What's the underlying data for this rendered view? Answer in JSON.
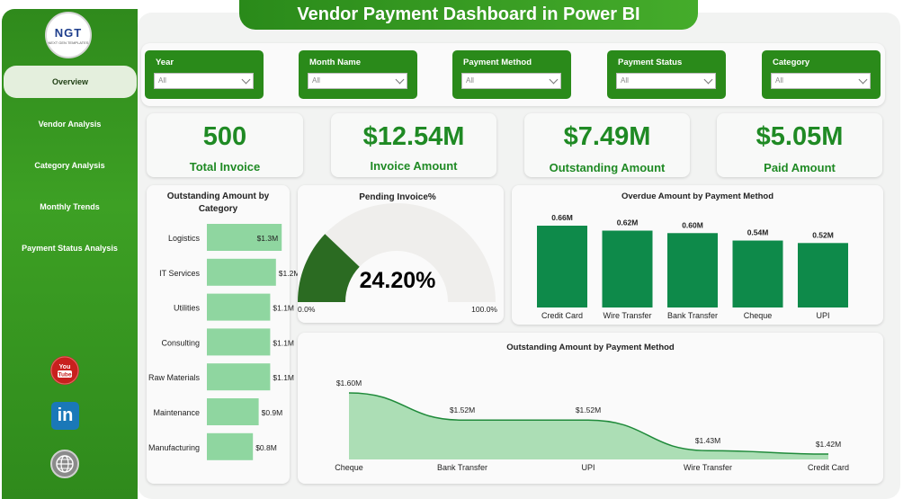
{
  "title": "Vendor Payment Dashboard in Power BI",
  "logo": {
    "text": "NGT",
    "subtext": "NEXT GEN TEMPLATES"
  },
  "nav": [
    "Overview",
    "Vendor Analysis",
    "Category Analysis",
    "Monthly Trends",
    "Payment Status Analysis"
  ],
  "social": {
    "youtube_icon": "youtube-icon",
    "linkedin_icon": "linkedin-icon",
    "website_icon": "globe-icon",
    "youtube_text": "You Tube",
    "linkedin_text": "in"
  },
  "filters": [
    {
      "label": "Year",
      "value": "All"
    },
    {
      "label": "Month Name",
      "value": "All"
    },
    {
      "label": "Payment Method",
      "value": "All"
    },
    {
      "label": "Payment Status",
      "value": "All"
    },
    {
      "label": "Category",
      "value": "All"
    }
  ],
  "kpis": [
    {
      "value": "500",
      "label": "Total Invoice"
    },
    {
      "value": "$12.54M",
      "label": "Invoice Amount"
    },
    {
      "value": "$7.49M",
      "label": "Outstanding Amount"
    },
    {
      "value": "$5.05M",
      "label": "Paid Amount"
    }
  ],
  "colors": {
    "brand": "#2a8a1a",
    "kpi_text": "#1f8a24",
    "bar_dark": "#0e8a4a",
    "bar_light": "#8fd6a0",
    "gauge_fill": "#2b6b22",
    "gauge_track": "#efeeec",
    "area_fill": "#9ed8a8",
    "area_line": "#1f8a3a"
  },
  "chart_data": [
    {
      "type": "bar",
      "orientation": "horizontal",
      "title": "Outstanding Amount by Category",
      "categories": [
        "Logistics",
        "IT Services",
        "Utilities",
        "Consulting",
        "Raw Materials",
        "Maintenance",
        "Manufacturing"
      ],
      "values": [
        1.3,
        1.2,
        1.1,
        1.1,
        1.1,
        0.9,
        0.8
      ],
      "labels": [
        "$1.3M",
        "$1.2M",
        "$1.1M",
        "$1.1M",
        "$1.1M",
        "$0.9M",
        "$0.8M"
      ],
      "xlim": [
        0,
        2.0
      ]
    },
    {
      "type": "gauge",
      "title": "Pending Invoice%",
      "value": 24.2,
      "display": "24.20%",
      "min_label": "0.0%",
      "max_label": "100.0%"
    },
    {
      "type": "bar",
      "title": "Overdue Amount by Payment Method",
      "categories": [
        "Credit Card",
        "Wire Transfer",
        "Bank Transfer",
        "Cheque",
        "UPI"
      ],
      "values": [
        0.66,
        0.62,
        0.6,
        0.54,
        0.52
      ],
      "labels": [
        "0.66M",
        "0.62M",
        "0.60M",
        "0.54M",
        "0.52M"
      ],
      "ylim": [
        0,
        0.66
      ]
    },
    {
      "type": "area",
      "title": "Outstanding Amount by Payment Method",
      "categories": [
        "Cheque",
        "Bank Transfer",
        "UPI",
        "Wire Transfer",
        "Credit Card"
      ],
      "values": [
        1.6,
        1.52,
        1.52,
        1.43,
        1.42
      ],
      "labels": [
        "$1.60M",
        "$1.52M",
        "$1.52M",
        "$1.43M",
        "$1.42M"
      ],
      "ylim": [
        1.4,
        1.62
      ]
    }
  ]
}
